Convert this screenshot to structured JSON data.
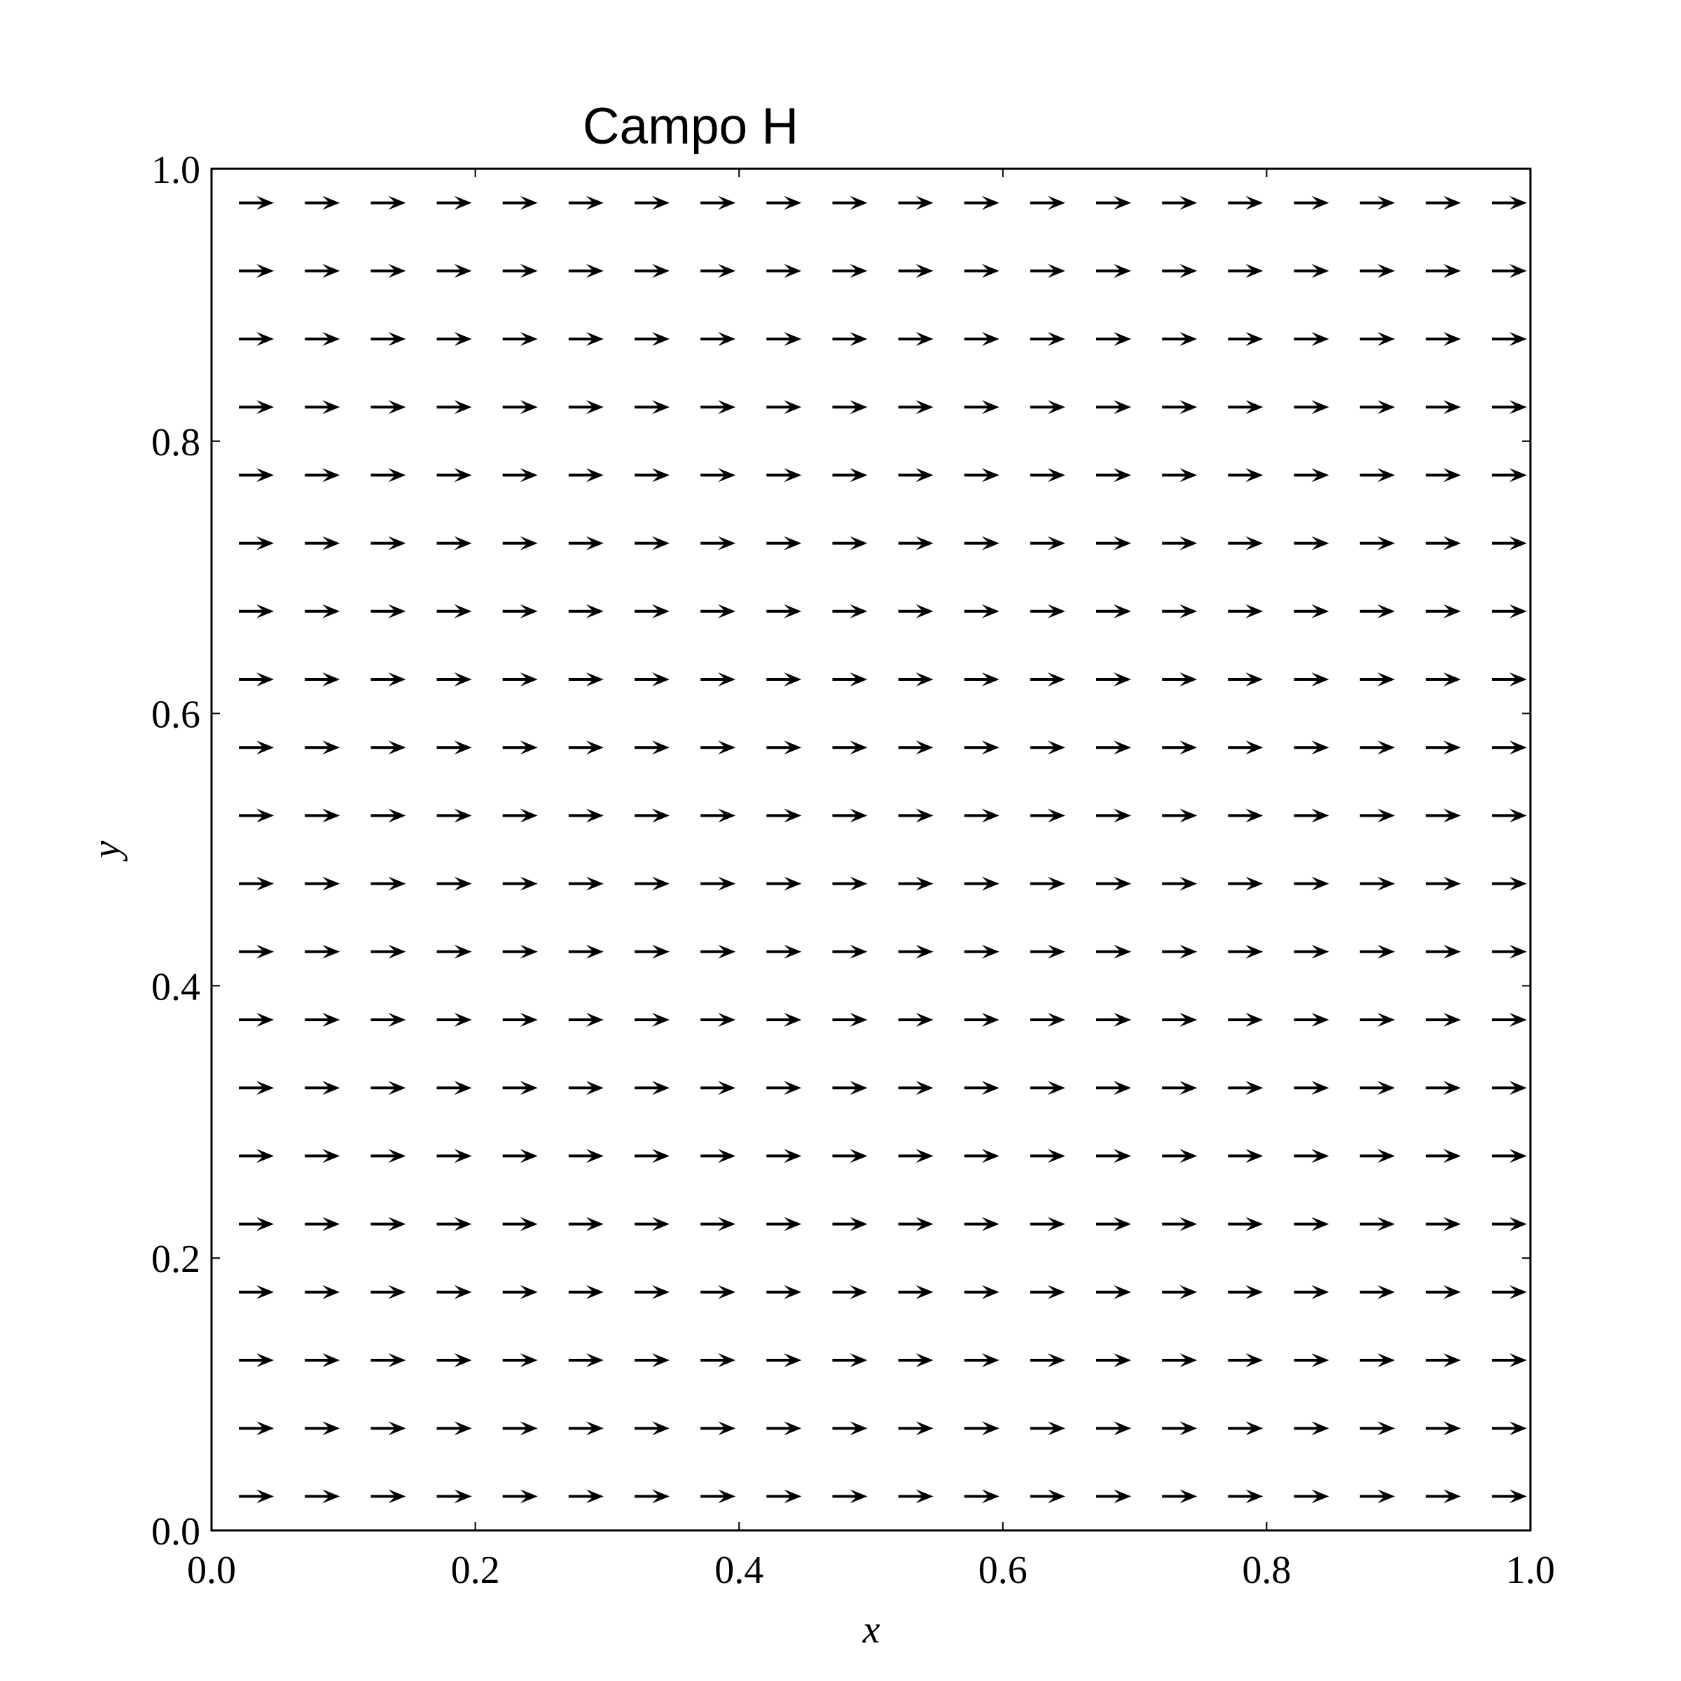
{
  "chart_data": {
    "type": "quiver",
    "title": "Campo H",
    "xlabel": "x",
    "ylabel": "y",
    "xlim": [
      0.0,
      1.0
    ],
    "ylim": [
      0.0,
      1.0
    ],
    "grid": false,
    "xticks": [
      0.0,
      0.2,
      0.4,
      0.6,
      0.8,
      1.0
    ],
    "yticks": [
      0.0,
      0.2,
      0.4,
      0.6,
      0.8,
      1.0
    ],
    "xtick_labels": [
      "0.0",
      "0.2",
      "0.4",
      "0.6",
      "0.8",
      "1.0"
    ],
    "ytick_labels": [
      "0.0",
      "0.2",
      "0.4",
      "0.6",
      "0.8",
      "1.0"
    ],
    "x": [
      0.025,
      0.075,
      0.125,
      0.175,
      0.225,
      0.275,
      0.325,
      0.375,
      0.425,
      0.475,
      0.525,
      0.575,
      0.625,
      0.675,
      0.725,
      0.775,
      0.825,
      0.875,
      0.925,
      0.975
    ],
    "y": [
      0.025,
      0.075,
      0.125,
      0.175,
      0.225,
      0.275,
      0.325,
      0.375,
      0.425,
      0.475,
      0.525,
      0.575,
      0.625,
      0.675,
      0.725,
      0.775,
      0.825,
      0.875,
      0.925,
      0.975
    ],
    "u": 1,
    "v": 0,
    "arrow_color": "#000000"
  }
}
